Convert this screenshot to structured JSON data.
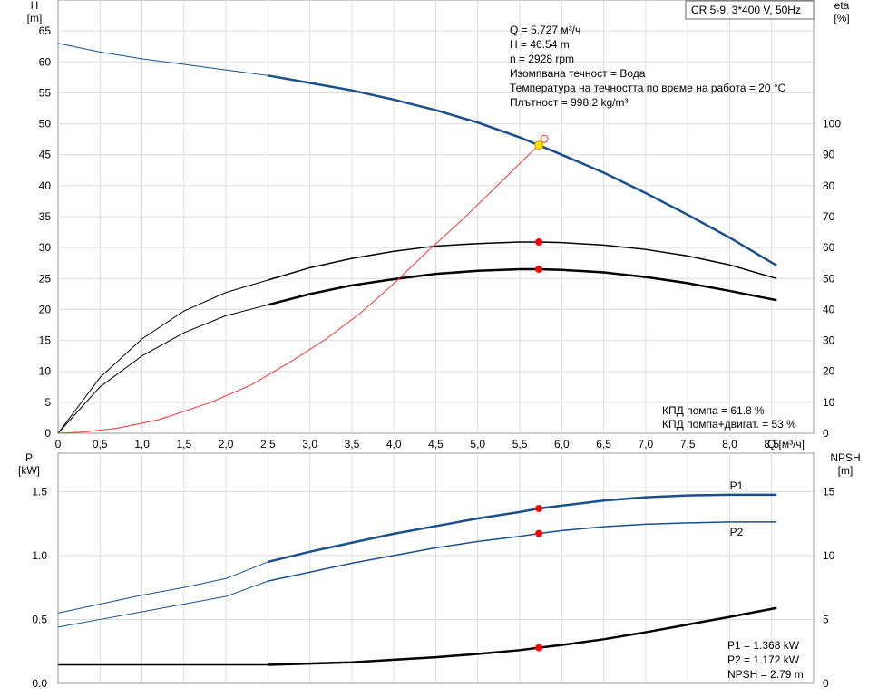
{
  "chart_data": [
    {
      "type": "line",
      "title": "CR 5-9, 3*400 V, 50Hz",
      "ylabel": "H",
      "yunit": "[m]",
      "y2label": "eta",
      "y2unit": "[%]",
      "xlabel": "Q [м³/ч]",
      "xlim": [
        0,
        9
      ],
      "ylim": [
        0,
        70
      ],
      "y2lim": [
        0,
        140
      ],
      "x_ticks": [
        "0",
        "0,5",
        "1,0",
        "1,5",
        "2,0",
        "2,5",
        "3,0",
        "3,5",
        "4,0",
        "4,5",
        "5,0",
        "5,5",
        "6,0",
        "6,5",
        "7,0",
        "7,5",
        "8,0",
        "8,5"
      ],
      "y_ticks": [
        "0",
        "5",
        "10",
        "15",
        "20",
        "25",
        "30",
        "35",
        "40",
        "45",
        "50",
        "55",
        "60",
        "65"
      ],
      "y2_ticks": [
        "0",
        "10",
        "20",
        "30",
        "40",
        "50",
        "60",
        "70",
        "80",
        "90",
        "100"
      ],
      "grid": true,
      "info_lines": [
        "Q = 5.727 м³/ч",
        "H = 46.54 m",
        "n = 2928 rpm",
        "Изомпвана течност = Вода",
        "Температура на течността по време на работа = 20 °C",
        "Плътност = 998.2 kg/m³"
      ],
      "efficiency_lines": [
        "КПД помпа = 61.8 %",
        "КПД помпа+двигат. = 53 %"
      ],
      "series": [
        {
          "axis": "y",
          "color": "#1a4f8b",
          "x": [
            0,
            0.5,
            1.0,
            1.5,
            2.0,
            2.5,
            3.0,
            3.5,
            4.0,
            4.5,
            5.0,
            5.5,
            5.727,
            6.0,
            6.5,
            7.0,
            7.5,
            8.0,
            8.56
          ],
          "values": [
            63.0,
            61.6,
            60.5,
            59.6,
            58.7,
            57.8,
            56.6,
            55.4,
            53.9,
            52.2,
            50.2,
            47.8,
            46.54,
            45.0,
            42.1,
            38.8,
            35.3,
            31.6,
            27.1
          ]
        },
        {
          "axis": "y2",
          "color": "#000000",
          "x": [
            0,
            0.5,
            1.0,
            1.5,
            2.0,
            2.5,
            3.0,
            3.5,
            4.0,
            4.5,
            5.0,
            5.5,
            5.727,
            6.0,
            6.5,
            7.0,
            7.5,
            8.0,
            8.56
          ],
          "values": [
            0,
            18,
            30.5,
            39.5,
            45.5,
            49.5,
            53.5,
            56.5,
            58.8,
            60.5,
            61.3,
            61.8,
            61.8,
            61.6,
            60.8,
            59.4,
            57.3,
            54.4,
            50.0
          ]
        },
        {
          "axis": "y2",
          "color": "#000000",
          "x": [
            0,
            0.5,
            1.0,
            1.5,
            2.0,
            2.5,
            3.0,
            3.5,
            4.0,
            4.5,
            5.0,
            5.5,
            5.727,
            6.0,
            6.5,
            7.0,
            7.5,
            8.0,
            8.56
          ],
          "values": [
            0,
            15,
            25,
            32.5,
            38,
            41.5,
            45,
            47.8,
            49.8,
            51.5,
            52.5,
            53,
            53,
            52.8,
            52.0,
            50.5,
            48.5,
            46.0,
            43.0
          ]
        },
        {
          "axis": "y",
          "color": "#ff3333",
          "x": [
            0,
            0.3,
            0.7,
            1.2,
            1.8,
            2.3,
            2.8,
            3.2,
            3.6,
            4.0,
            4.4,
            4.8,
            5.2,
            5.5,
            5.727
          ],
          "values": [
            0,
            0.2,
            0.8,
            2.2,
            4.9,
            7.8,
            11.8,
            15.3,
            19.4,
            24.2,
            29.4,
            34.3,
            39.6,
            43.6,
            46.54
          ]
        }
      ],
      "duty_point": {
        "x": 5.727,
        "h": 46.54,
        "eta_pump": 61.8,
        "eta_total": 53
      }
    },
    {
      "type": "line",
      "ylabel": "P",
      "yunit": "[kW]",
      "y2label": "NPSH",
      "y2unit": "[m]",
      "xlim": [
        0,
        9
      ],
      "ylim": [
        0,
        1.8
      ],
      "y2lim": [
        0,
        18
      ],
      "y_ticks": [
        "0.0",
        "0.5",
        "1.0",
        "1.5"
      ],
      "y2_ticks": [
        "0",
        "5",
        "10",
        "15"
      ],
      "grid": true,
      "series": [
        {
          "name": "P1",
          "axis": "y",
          "color": "#1a4f8b",
          "x": [
            0,
            0.5,
            1.0,
            1.5,
            2.0,
            2.5,
            3.0,
            3.5,
            4.0,
            4.5,
            5.0,
            5.5,
            5.727,
            6.0,
            6.5,
            7.0,
            7.5,
            8.0,
            8.56
          ],
          "values": [
            0.55,
            0.62,
            0.69,
            0.75,
            0.82,
            0.95,
            1.03,
            1.1,
            1.17,
            1.23,
            1.29,
            1.34,
            1.368,
            1.39,
            1.43,
            1.455,
            1.47,
            1.475,
            1.475
          ]
        },
        {
          "name": "P2",
          "axis": "y",
          "color": "#1a4f8b",
          "x": [
            0,
            0.5,
            1.0,
            1.5,
            2.0,
            2.5,
            3.0,
            3.5,
            4.0,
            4.5,
            5.0,
            5.5,
            5.727,
            6.0,
            6.5,
            7.0,
            7.5,
            8.0,
            8.56
          ],
          "values": [
            0.44,
            0.5,
            0.56,
            0.62,
            0.68,
            0.8,
            0.87,
            0.94,
            1.0,
            1.06,
            1.11,
            1.15,
            1.172,
            1.195,
            1.225,
            1.245,
            1.255,
            1.262,
            1.262
          ]
        },
        {
          "axis": "y2",
          "color": "#000000",
          "x": [
            0,
            0.5,
            1.0,
            1.5,
            2.0,
            2.5,
            3.0,
            3.5,
            4.0,
            4.5,
            5.0,
            5.5,
            5.727,
            6.0,
            6.5,
            7.0,
            7.5,
            8.0,
            8.56
          ],
          "values": [
            1.45,
            1.45,
            1.45,
            1.45,
            1.45,
            1.45,
            1.55,
            1.65,
            1.85,
            2.05,
            2.3,
            2.6,
            2.79,
            3.0,
            3.45,
            4.0,
            4.6,
            5.2,
            5.9
          ]
        }
      ],
      "duty_point": {
        "x": 5.727,
        "p1": 1.368,
        "p2": 1.172,
        "npsh": 2.79
      },
      "values_lines": [
        "P1 = 1.368 kW",
        "P2 = 1.172 kW",
        "NPSH = 2.79 m"
      ]
    }
  ]
}
